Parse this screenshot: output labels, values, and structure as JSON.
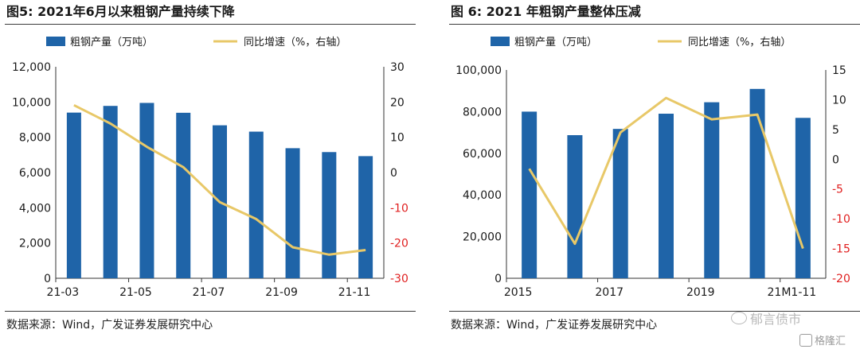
{
  "watermark": {
    "main": "郁言债市",
    "secondary": "格隆汇"
  },
  "chart_data": [
    {
      "type": "bar+line",
      "title": "图5:  2021年6月以来粗钢产量持续下降",
      "source": "数据来源：Wind，广发证券发展研究中心",
      "categories": [
        "21-03",
        "21-04",
        "21-05",
        "21-06",
        "21-07",
        "21-08",
        "21-09",
        "21-10",
        "21-11"
      ],
      "x_tick_labels": [
        "21-03",
        "",
        "21-05",
        "",
        "21-07",
        "",
        "21-09",
        "",
        "21-11"
      ],
      "series": [
        {
          "name": "粗钢产量（万吨）",
          "type": "bar",
          "axis": "left",
          "color": "#1f64a8",
          "values": [
            9400,
            9780,
            9950,
            9390,
            8680,
            8320,
            7380,
            7160,
            6930
          ]
        },
        {
          "name": "同比增速（%，右轴）",
          "type": "line",
          "axis": "right",
          "color": "#e8c868",
          "values": [
            19.1,
            13.9,
            7.3,
            1.5,
            -8.4,
            -13.2,
            -21.2,
            -23.3,
            -22.0
          ]
        }
      ],
      "y_left": {
        "range": [
          0,
          12000
        ],
        "ticks": [
          "0",
          "2,000",
          "4,000",
          "6,000",
          "8,000",
          "10,000",
          "12,000"
        ]
      },
      "y_right": {
        "range": [
          -30,
          30
        ],
        "ticks": [
          "-30",
          "-20",
          "-10",
          "0",
          "10",
          "20",
          "30"
        ],
        "negative_color": "#e02020"
      },
      "grid": false,
      "legend_position": "top"
    },
    {
      "type": "bar+line",
      "title": "图 6:  2021 年粗钢产量整体压减",
      "source": "数据来源：Wind，广发证券发展研究中心",
      "categories": [
        "2015",
        "2016",
        "2017",
        "2018",
        "2019",
        "2020",
        "21M1-11"
      ],
      "x_tick_labels": [
        "2015",
        "",
        "2017",
        "",
        "2019",
        "",
        "21M1-11"
      ],
      "series": [
        {
          "name": "粗钢产量（万吨）",
          "type": "bar",
          "axis": "left",
          "color": "#1f64a8",
          "values": [
            80000,
            68700,
            71700,
            79000,
            84500,
            90900,
            77000
          ]
        },
        {
          "name": "同比增速（%，右轴）",
          "type": "line",
          "axis": "right",
          "color": "#e8c868",
          "values": [
            -1.6,
            -14.2,
            4.5,
            10.3,
            6.7,
            7.5,
            -15.0
          ]
        }
      ],
      "y_left": {
        "range": [
          0,
          100000
        ],
        "ticks": [
          "0",
          "20,000",
          "40,000",
          "60,000",
          "80,000",
          "100,000"
        ]
      },
      "y_right": {
        "range": [
          -20,
          15
        ],
        "ticks": [
          "-20",
          "-15",
          "-10",
          "-5",
          "0",
          "5",
          "10",
          "15"
        ],
        "negative_color": "#e02020"
      },
      "grid": false,
      "legend_position": "top"
    }
  ]
}
